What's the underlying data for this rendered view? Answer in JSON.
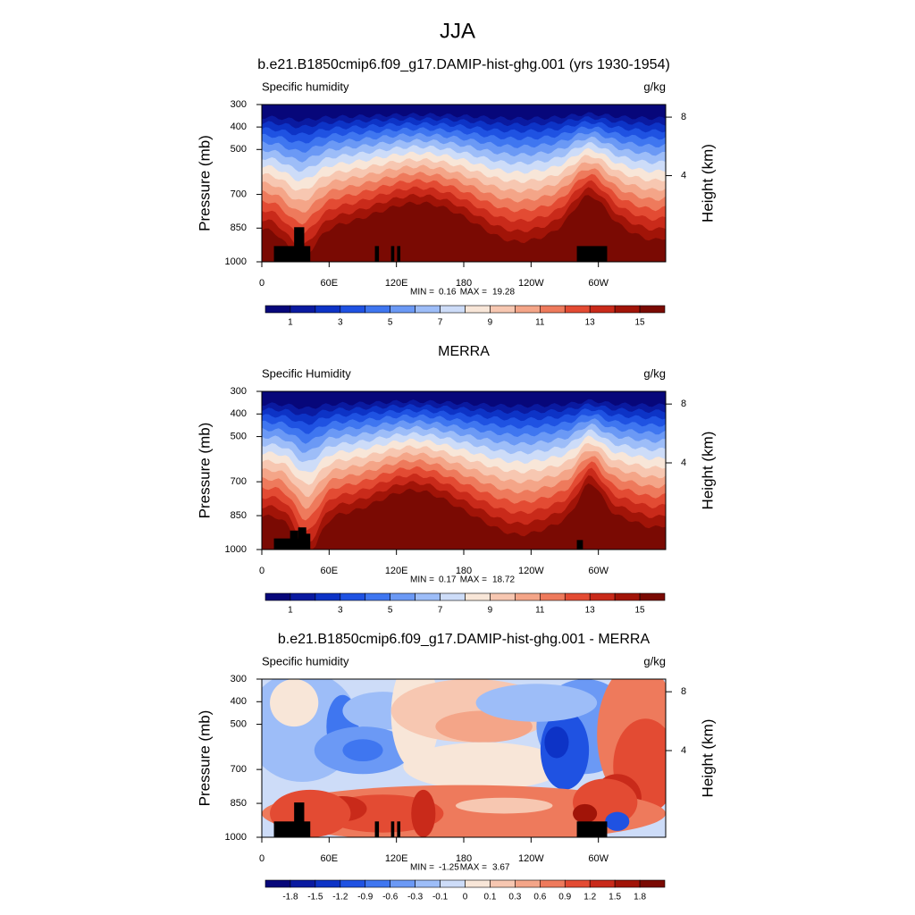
{
  "title": "JJA",
  "chart_data": [
    {
      "type": "contour",
      "title": "b.e21.B1850cmip6.f09_g17.DAMIP-hist-ghg.001 (yrs 1930-1954)",
      "subtitle": "Specific humidity",
      "units": "g/kg",
      "ylabel": "Pressure (mb)",
      "y2label": "Height (km)",
      "xlim": [
        0,
        360
      ],
      "xticks": [
        0,
        {
          "value": 60,
          "label": "60E"
        },
        {
          "value": 120,
          "label": "120E"
        },
        180,
        {
          "value": 240,
          "label": "120W"
        },
        {
          "value": 300,
          "label": "60W"
        }
      ],
      "ylim": [
        1000,
        300
      ],
      "yticks": [
        300,
        400,
        500,
        700,
        850,
        1000
      ],
      "y2ticks": [
        4,
        8
      ],
      "min_label": "MIN =",
      "min": 0.16,
      "max_label": "MAX =",
      "max": 19.28,
      "colorbar": {
        "lim": [
          0,
          16
        ],
        "ticks": [
          1,
          3,
          5,
          7,
          9,
          11,
          13,
          15
        ],
        "colors": [
          "#07077a",
          "#0a1aa0",
          "#0d33c6",
          "#1f52e2",
          "#3f76f0",
          "#6b99f5",
          "#9dbdf8",
          "#cddcf8",
          "#f8e6d8",
          "#f7c7b1",
          "#f4a588",
          "#ee7a5c",
          "#e34b33",
          "#c92a1a",
          "#a11408",
          "#7a0a03"
        ]
      }
    },
    {
      "type": "contour",
      "title": "MERRA",
      "subtitle": "Specific Humidity",
      "units": "g/kg",
      "ylabel": "Pressure (mb)",
      "y2label": "Height (km)",
      "xlim": [
        0,
        360
      ],
      "xticks": [
        0,
        {
          "value": 60,
          "label": "60E"
        },
        {
          "value": 120,
          "label": "120E"
        },
        180,
        {
          "value": 240,
          "label": "120W"
        },
        {
          "value": 300,
          "label": "60W"
        }
      ],
      "ylim": [
        1000,
        300
      ],
      "yticks": [
        300,
        400,
        500,
        700,
        850,
        1000
      ],
      "y2ticks": [
        4,
        8
      ],
      "min_label": "MIN =",
      "min": 0.17,
      "max_label": "MAX =",
      "max": 18.72,
      "colorbar": {
        "lim": [
          0,
          16
        ],
        "ticks": [
          1,
          3,
          5,
          7,
          9,
          11,
          13,
          15
        ],
        "colors": [
          "#07077a",
          "#0a1aa0",
          "#0d33c6",
          "#1f52e2",
          "#3f76f0",
          "#6b99f5",
          "#9dbdf8",
          "#cddcf8",
          "#f8e6d8",
          "#f7c7b1",
          "#f4a588",
          "#ee7a5c",
          "#e34b33",
          "#c92a1a",
          "#a11408",
          "#7a0a03"
        ]
      }
    },
    {
      "type": "difference",
      "title": "b.e21.B1850cmip6.f09_g17.DAMIP-hist-ghg.001 - MERRA",
      "subtitle": "Specific humidity",
      "units": "g/kg",
      "ylabel": "Pressure (mb)",
      "y2label": "Height (km)",
      "xlim": [
        0,
        360
      ],
      "xticks": [
        0,
        {
          "value": 60,
          "label": "60E"
        },
        {
          "value": 120,
          "label": "120E"
        },
        180,
        {
          "value": 240,
          "label": "120W"
        },
        {
          "value": 300,
          "label": "60W"
        }
      ],
      "ylim": [
        1000,
        300
      ],
      "yticks": [
        300,
        400,
        500,
        700,
        850,
        1000
      ],
      "y2ticks": [
        4,
        8
      ],
      "min_label": "MIN =",
      "min": -1.25,
      "max_label": "MAX =",
      "max": 3.67,
      "colorbar": {
        "ticks": [
          -1.8,
          -1.5,
          -1.2,
          -0.9,
          -0.6,
          -0.3,
          -0.1,
          0,
          0.1,
          0.3,
          0.6,
          0.9,
          1.2,
          1.5,
          1.8
        ],
        "colors": [
          "#07077a",
          "#0a1aa0",
          "#0d33c6",
          "#1f52e2",
          "#3f76f0",
          "#6b99f5",
          "#9dbdf8",
          "#cddcf8",
          "#f8e6d8",
          "#f7c7b1",
          "#f4a588",
          "#ee7a5c",
          "#e34b33",
          "#c92a1a",
          "#a11408",
          "#7a0a03"
        ]
      }
    }
  ]
}
